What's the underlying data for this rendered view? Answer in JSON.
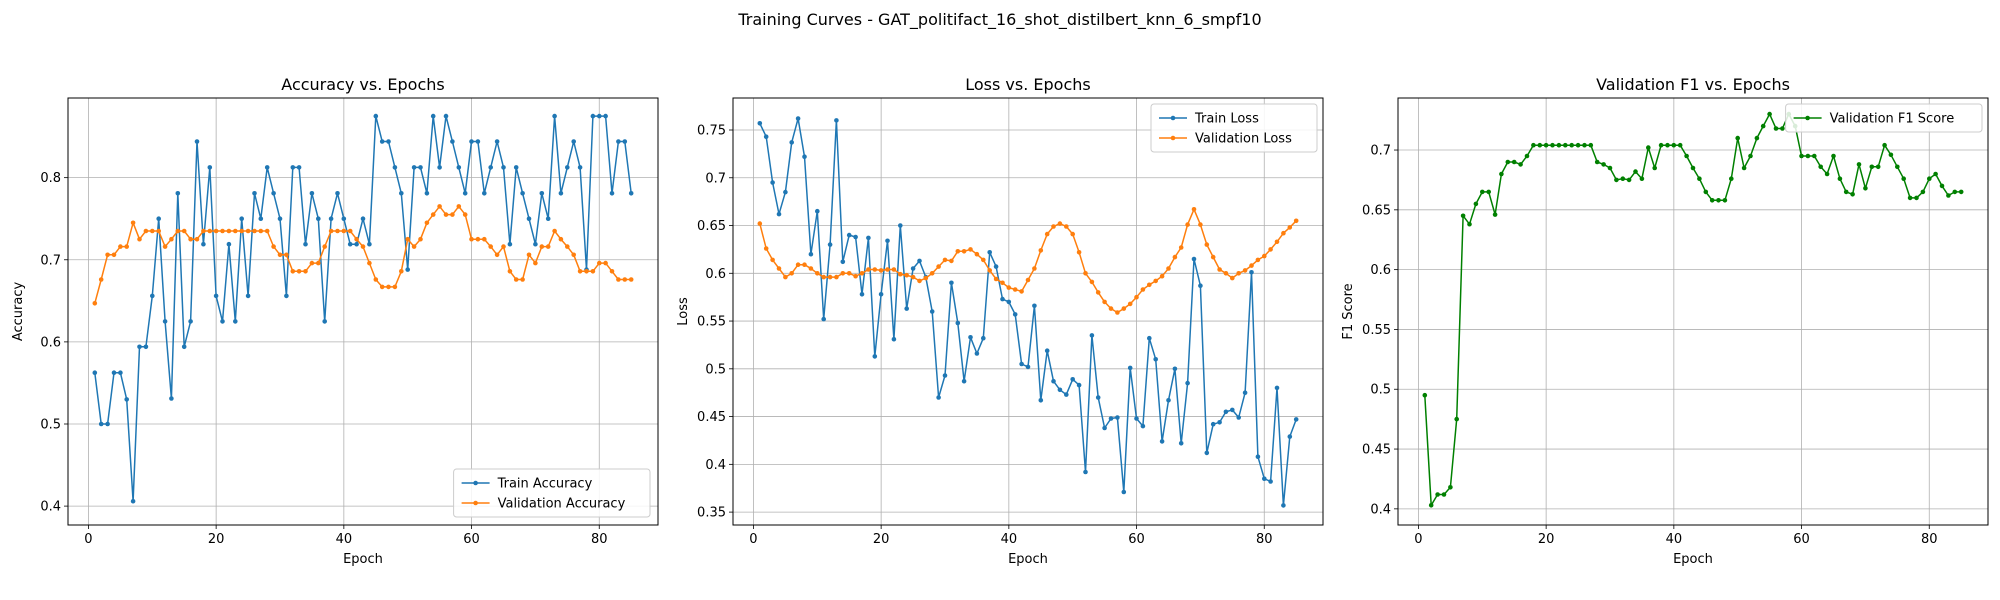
{
  "suptitle": "Training Curves - GAT_politifact_16_shot_distilbert_knn_6_smpf10",
  "chart_data": [
    {
      "type": "line",
      "title": "Accuracy vs. Epochs",
      "xlabel": "Epoch",
      "ylabel": "Accuracy",
      "xlim": [
        -3.2,
        89.2
      ],
      "ylim": [
        0.377,
        0.897
      ],
      "xticks": [
        0,
        20,
        40,
        60,
        80
      ],
      "yticks": [
        0.4,
        0.5,
        0.6,
        0.7,
        0.8
      ],
      "grid": true,
      "legend": "lower-right",
      "x": [
        1,
        2,
        3,
        4,
        5,
        6,
        7,
        8,
        9,
        10,
        11,
        12,
        13,
        14,
        15,
        16,
        17,
        18,
        19,
        20,
        21,
        22,
        23,
        24,
        25,
        26,
        27,
        28,
        29,
        30,
        31,
        32,
        33,
        34,
        35,
        36,
        37,
        38,
        39,
        40,
        41,
        42,
        43,
        44,
        45,
        46,
        47,
        48,
        49,
        50,
        51,
        52,
        53,
        54,
        55,
        56,
        57,
        58,
        59,
        60,
        61,
        62,
        63,
        64,
        65,
        66,
        67,
        68,
        69,
        70,
        71,
        72,
        73,
        74,
        75,
        76,
        77,
        78,
        79,
        80,
        81,
        82,
        83,
        84,
        85
      ],
      "series": [
        {
          "name": "Train Accuracy",
          "color": "#1f77b4",
          "values": [
            0.5625,
            0.5,
            0.5,
            0.5625,
            0.5625,
            0.53,
            0.406,
            0.594,
            0.594,
            0.656,
            0.75,
            0.625,
            0.531,
            0.781,
            0.594,
            0.625,
            0.844,
            0.719,
            0.8125,
            0.656,
            0.625,
            0.719,
            0.625,
            0.75,
            0.656,
            0.781,
            0.75,
            0.8125,
            0.781,
            0.75,
            0.656,
            0.8125,
            0.8125,
            0.719,
            0.781,
            0.75,
            0.625,
            0.75,
            0.781,
            0.75,
            0.719,
            0.719,
            0.75,
            0.719,
            0.875,
            0.844,
            0.844,
            0.8125,
            0.781,
            0.688,
            0.8125,
            0.8125,
            0.781,
            0.875,
            0.8125,
            0.875,
            0.844,
            0.8125,
            0.781,
            0.844,
            0.844,
            0.781,
            0.8125,
            0.844,
            0.8125,
            0.719,
            0.8125,
            0.781,
            0.75,
            0.719,
            0.781,
            0.75,
            0.875,
            0.781,
            0.8125,
            0.844,
            0.8125,
            0.688,
            0.875,
            0.875,
            0.875,
            0.781,
            0.844,
            0.844,
            0.781
          ]
        },
        {
          "name": "Validation Accuracy",
          "color": "#ff7f0e",
          "values": [
            0.647,
            0.676,
            0.706,
            0.706,
            0.716,
            0.716,
            0.745,
            0.725,
            0.735,
            0.735,
            0.735,
            0.716,
            0.725,
            0.735,
            0.735,
            0.725,
            0.725,
            0.735,
            0.735,
            0.735,
            0.735,
            0.735,
            0.735,
            0.735,
            0.735,
            0.735,
            0.735,
            0.735,
            0.716,
            0.706,
            0.706,
            0.686,
            0.686,
            0.686,
            0.696,
            0.696,
            0.716,
            0.735,
            0.735,
            0.735,
            0.735,
            0.725,
            0.716,
            0.696,
            0.676,
            0.667,
            0.667,
            0.667,
            0.686,
            0.725,
            0.716,
            0.725,
            0.745,
            0.755,
            0.765,
            0.755,
            0.755,
            0.765,
            0.755,
            0.725,
            0.725,
            0.725,
            0.716,
            0.706,
            0.716,
            0.686,
            0.676,
            0.676,
            0.706,
            0.696,
            0.716,
            0.716,
            0.735,
            0.725,
            0.716,
            0.706,
            0.686,
            0.686,
            0.686,
            0.696,
            0.696,
            0.686,
            0.676,
            0.676,
            0.676
          ]
        }
      ]
    },
    {
      "type": "line",
      "title": "Loss vs. Epochs",
      "xlabel": "Epoch",
      "ylabel": "Loss",
      "xlim": [
        -3.2,
        89.2
      ],
      "ylim": [
        0.3365,
        0.7835
      ],
      "xticks": [
        0,
        20,
        40,
        60,
        80
      ],
      "yticks": [
        0.35,
        0.4,
        0.45,
        0.5,
        0.55,
        0.6,
        0.65,
        0.7,
        0.75
      ],
      "grid": true,
      "legend": "top-right",
      "x": [
        1,
        2,
        3,
        4,
        5,
        6,
        7,
        8,
        9,
        10,
        11,
        12,
        13,
        14,
        15,
        16,
        17,
        18,
        19,
        20,
        21,
        22,
        23,
        24,
        25,
        26,
        27,
        28,
        29,
        30,
        31,
        32,
        33,
        34,
        35,
        36,
        37,
        38,
        39,
        40,
        41,
        42,
        43,
        44,
        45,
        46,
        47,
        48,
        49,
        50,
        51,
        52,
        53,
        54,
        55,
        56,
        57,
        58,
        59,
        60,
        61,
        62,
        63,
        64,
        65,
        66,
        67,
        68,
        69,
        70,
        71,
        72,
        73,
        74,
        75,
        76,
        77,
        78,
        79,
        80,
        81,
        82,
        83,
        84,
        85
      ],
      "series": [
        {
          "name": "Train Loss",
          "color": "#1f77b4",
          "values": [
            0.757,
            0.743,
            0.695,
            0.662,
            0.685,
            0.737,
            0.762,
            0.722,
            0.62,
            0.665,
            0.552,
            0.63,
            0.76,
            0.612,
            0.64,
            0.638,
            0.578,
            0.637,
            0.513,
            0.578,
            0.634,
            0.531,
            0.65,
            0.563,
            0.605,
            0.613,
            0.596,
            0.56,
            0.47,
            0.493,
            0.59,
            0.548,
            0.487,
            0.533,
            0.516,
            0.532,
            0.622,
            0.607,
            0.573,
            0.57,
            0.557,
            0.505,
            0.502,
            0.566,
            0.467,
            0.519,
            0.487,
            0.478,
            0.473,
            0.489,
            0.483,
            0.392,
            0.535,
            0.47,
            0.438,
            0.448,
            0.449,
            0.371,
            0.501,
            0.448,
            0.44,
            0.532,
            0.51,
            0.424,
            0.467,
            0.5,
            0.422,
            0.485,
            0.615,
            0.587,
            0.412,
            0.442,
            0.444,
            0.455,
            0.457,
            0.449,
            0.475,
            0.601,
            0.408,
            0.385,
            0.382,
            0.48,
            0.357,
            0.429,
            0.447
          ]
        },
        {
          "name": "Validation Loss",
          "color": "#ff7f0e",
          "values": [
            0.652,
            0.626,
            0.614,
            0.605,
            0.596,
            0.6,
            0.609,
            0.609,
            0.605,
            0.6,
            0.596,
            0.596,
            0.596,
            0.6,
            0.6,
            0.597,
            0.6,
            0.604,
            0.604,
            0.603,
            0.604,
            0.604,
            0.599,
            0.598,
            0.596,
            0.592,
            0.595,
            0.6,
            0.607,
            0.614,
            0.613,
            0.623,
            0.623,
            0.625,
            0.62,
            0.614,
            0.603,
            0.594,
            0.59,
            0.585,
            0.583,
            0.581,
            0.593,
            0.605,
            0.624,
            0.641,
            0.649,
            0.652,
            0.649,
            0.641,
            0.622,
            0.6,
            0.591,
            0.58,
            0.57,
            0.563,
            0.559,
            0.563,
            0.568,
            0.575,
            0.583,
            0.588,
            0.592,
            0.597,
            0.605,
            0.617,
            0.627,
            0.651,
            0.667,
            0.651,
            0.63,
            0.617,
            0.604,
            0.6,
            0.595,
            0.6,
            0.603,
            0.608,
            0.614,
            0.618,
            0.625,
            0.633,
            0.642,
            0.648,
            0.655
          ]
        }
      ]
    },
    {
      "type": "line",
      "title": "Validation F1 vs. Epochs",
      "xlabel": "Epoch",
      "ylabel": "F1 Score",
      "xlim": [
        -3.2,
        89.2
      ],
      "ylim": [
        0.3865,
        0.7435
      ],
      "xticks": [
        0,
        20,
        40,
        60,
        80
      ],
      "yticks": [
        0.4,
        0.45,
        0.5,
        0.55,
        0.6,
        0.65,
        0.7
      ],
      "grid": true,
      "legend": "top-right",
      "x": [
        1,
        2,
        3,
        4,
        5,
        6,
        7,
        8,
        9,
        10,
        11,
        12,
        13,
        14,
        15,
        16,
        17,
        18,
        19,
        20,
        21,
        22,
        23,
        24,
        25,
        26,
        27,
        28,
        29,
        30,
        31,
        32,
        33,
        34,
        35,
        36,
        37,
        38,
        39,
        40,
        41,
        42,
        43,
        44,
        45,
        46,
        47,
        48,
        49,
        50,
        51,
        52,
        53,
        54,
        55,
        56,
        57,
        58,
        59,
        60,
        61,
        62,
        63,
        64,
        65,
        66,
        67,
        68,
        69,
        70,
        71,
        72,
        73,
        74,
        75,
        76,
        77,
        78,
        79,
        80,
        81,
        82,
        83,
        84,
        85
      ],
      "series": [
        {
          "name": "Validation F1 Score",
          "color": "#008000",
          "values": [
            0.495,
            0.403,
            0.412,
            0.412,
            0.418,
            0.475,
            0.645,
            0.638,
            0.655,
            0.665,
            0.665,
            0.646,
            0.68,
            0.69,
            0.69,
            0.688,
            0.695,
            0.704,
            0.704,
            0.704,
            0.704,
            0.704,
            0.704,
            0.704,
            0.704,
            0.704,
            0.704,
            0.69,
            0.688,
            0.685,
            0.675,
            0.676,
            0.675,
            0.682,
            0.676,
            0.702,
            0.685,
            0.704,
            0.704,
            0.704,
            0.704,
            0.695,
            0.685,
            0.676,
            0.665,
            0.658,
            0.658,
            0.658,
            0.676,
            0.71,
            0.685,
            0.695,
            0.71,
            0.72,
            0.73,
            0.718,
            0.718,
            0.73,
            0.72,
            0.695,
            0.695,
            0.695,
            0.686,
            0.68,
            0.695,
            0.676,
            0.665,
            0.663,
            0.688,
            0.668,
            0.686,
            0.686,
            0.704,
            0.696,
            0.686,
            0.676,
            0.66,
            0.66,
            0.665,
            0.676,
            0.68,
            0.67,
            0.662,
            0.665,
            0.665
          ]
        }
      ]
    }
  ]
}
